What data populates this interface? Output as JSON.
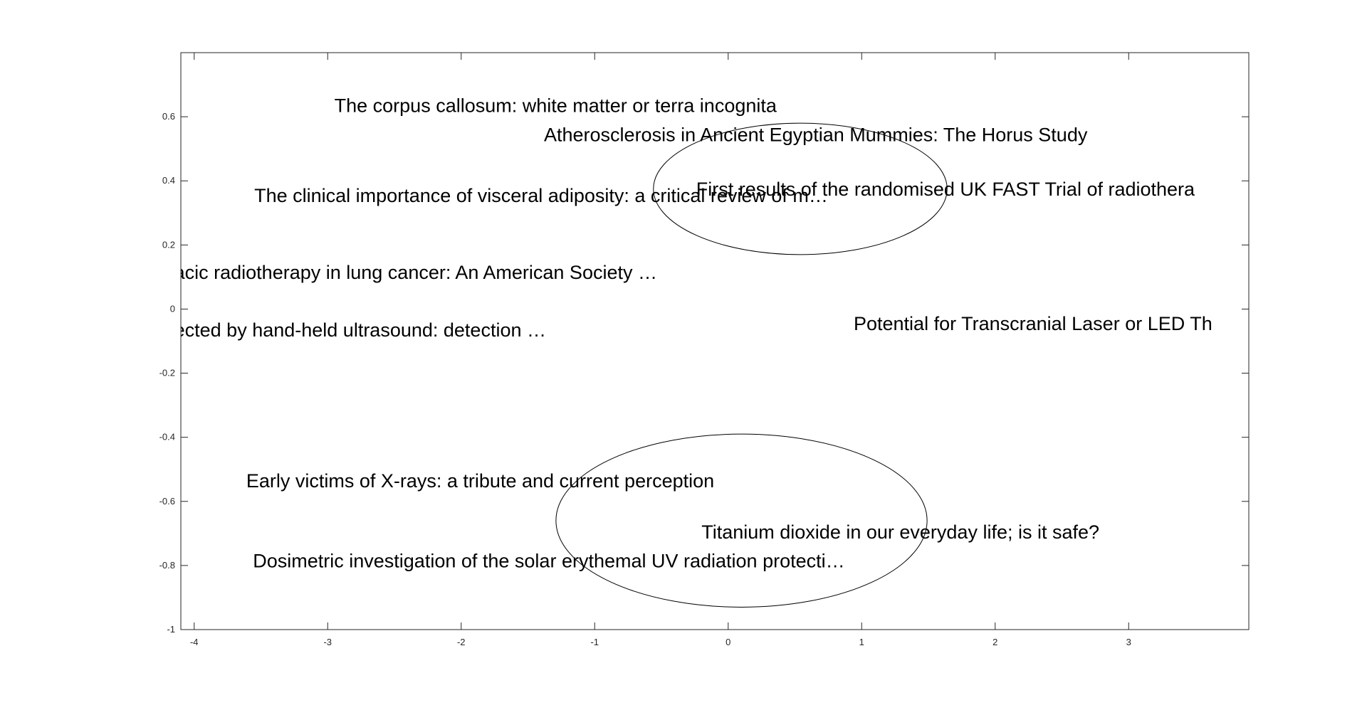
{
  "chart_data": {
    "type": "scatter",
    "title": "",
    "xlabel": "",
    "ylabel": "",
    "xlim": [
      -4.1,
      3.9
    ],
    "ylim": [
      -1,
      0.8
    ],
    "x_ticks": [
      -4,
      -3,
      -2,
      -1,
      0,
      1,
      2,
      3
    ],
    "y_ticks": [
      0.6,
      0.4,
      0.2,
      0,
      -0.2,
      -0.4,
      -0.6,
      -0.8,
      -1
    ],
    "tick_labels_x": [
      "-4",
      "-3",
      "-2",
      "-1",
      "0",
      "1",
      "2",
      "3"
    ],
    "tick_labels_y": [
      "0.6",
      "0.4",
      "0.2",
      "0",
      "-0.2",
      "-0.4",
      "-0.6",
      "-0.8",
      "-1"
    ],
    "grid": false,
    "box": true,
    "points": [
      {
        "x": -2.95,
        "y": 0.63,
        "label": "The corpus callosum: white matter or terra incognita"
      },
      {
        "x": -1.38,
        "y": 0.54,
        "label": "Atherosclerosis in Ancient Egyptian Mummies: The Horus Study"
      },
      {
        "x": -0.24,
        "y": 0.37,
        "label": "First results of the randomised UK FAST Trial of radiothera"
      },
      {
        "x": -3.55,
        "y": 0.35,
        "label": "The clinical importance of visceral adiposity: a critical review of m…"
      },
      {
        "x": -4.15,
        "y": 0.11,
        "label": "acic radiotherapy in lung cancer: An American Society …"
      },
      {
        "x": 0.94,
        "y": -0.05,
        "label": "Potential for Transcranial Laser or LED Th"
      },
      {
        "x": -4.15,
        "y": -0.07,
        "label": "ected by hand-held ultrasound: detection …"
      },
      {
        "x": -3.61,
        "y": -0.54,
        "label": "Early victims of X-rays: a tribute and current perception"
      },
      {
        "x": -0.2,
        "y": -0.7,
        "label": "Titanium dioxide in our everyday life; is it safe?"
      },
      {
        "x": -3.56,
        "y": -0.79,
        "label": "Dosimetric investigation of the solar erythemal UV radiation protecti…"
      }
    ],
    "ellipses": [
      {
        "cx": 0.54,
        "cy": 0.375,
        "rx": 1.1,
        "ry": 0.205
      },
      {
        "cx": 0.1,
        "cy": -0.66,
        "rx": 1.39,
        "ry": 0.27
      }
    ],
    "colors": {
      "axis": "#262626",
      "text": "#000000",
      "ellipse": "#000000",
      "background": "#ffffff"
    }
  }
}
